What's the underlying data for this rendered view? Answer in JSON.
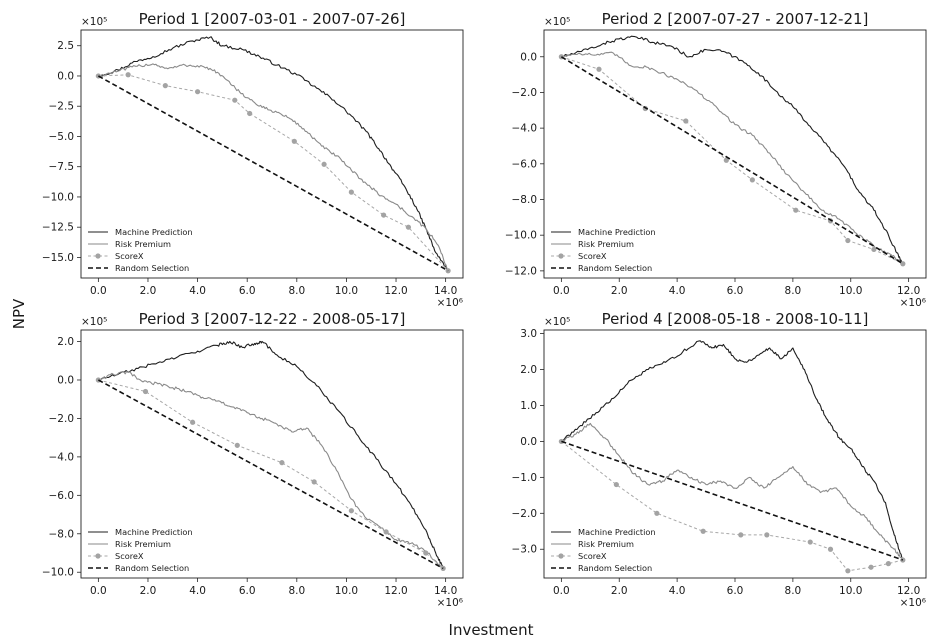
{
  "figure": {
    "ylabel": "NPV",
    "xlabel": "Investment"
  },
  "chart_data": [
    {
      "type": "line",
      "title": "Period 1 [2007-03-01 - 2007-07-26]",
      "x_exponent": "×10⁶",
      "y_exponent": "×10⁵",
      "xlim": [
        -0.7,
        14.7
      ],
      "ylim": [
        -16.7,
        3.8
      ],
      "xticks": [
        0,
        2,
        4,
        6,
        8,
        10,
        12,
        14
      ],
      "xtick_labels": [
        "0.0",
        "2.0",
        "4.0",
        "6.0",
        "8.0",
        "10.0",
        "12.0",
        "14.0"
      ],
      "yticks": [
        2.5,
        0,
        -2.5,
        -5,
        -7.5,
        -10,
        -12.5,
        -15
      ],
      "ytick_labels": [
        "2.5",
        "0.0",
        "−2.5",
        "−5.0",
        "−7.5",
        "−10.0",
        "−12.5",
        "−15.0"
      ],
      "legend": "lower-left",
      "series": [
        {
          "name": "Machine Prediction",
          "style": "solid-dark",
          "x": [
            0,
            0.8,
            1.5,
            2.2,
            3.0,
            3.8,
            4.5,
            5.0,
            5.8,
            6.5,
            7.2,
            8.0,
            8.8,
            9.5,
            10.2,
            10.8,
            11.3,
            11.8,
            12.3,
            12.8,
            13.2,
            13.6,
            14.1
          ],
          "y": [
            0,
            0.5,
            1.2,
            1.6,
            2.3,
            2.9,
            3.2,
            2.5,
            2.2,
            1.6,
            0.9,
            0.1,
            -1.0,
            -2.0,
            -3.3,
            -4.6,
            -6.0,
            -7.5,
            -9.0,
            -10.8,
            -12.6,
            -14.6,
            -16.1
          ]
        },
        {
          "name": "Risk Premium",
          "style": "solid-light",
          "x": [
            0,
            0.8,
            1.5,
            2.2,
            2.8,
            3.5,
            4.2,
            4.8,
            5.4,
            6.0,
            6.6,
            7.2,
            7.8,
            8.4,
            9.0,
            9.6,
            10.2,
            10.8,
            11.4,
            12.0,
            12.6,
            13.2,
            13.7,
            14.1
          ],
          "y": [
            0,
            0.4,
            0.8,
            1.0,
            0.6,
            0.9,
            0.8,
            0.3,
            -0.8,
            -1.8,
            -2.6,
            -3.0,
            -3.6,
            -4.6,
            -5.8,
            -6.6,
            -7.8,
            -8.9,
            -9.9,
            -10.6,
            -11.6,
            -12.6,
            -14.0,
            -16.1
          ]
        },
        {
          "name": "ScoreX",
          "style": "dashed-dots",
          "x": [
            0,
            1.2,
            2.7,
            4.0,
            5.5,
            6.1,
            7.9,
            9.1,
            10.2,
            11.5,
            12.5,
            14.1
          ],
          "y": [
            0,
            0.1,
            -0.8,
            -1.3,
            -2.0,
            -3.1,
            -5.4,
            -7.3,
            -9.6,
            -11.5,
            -12.5,
            -16.1
          ]
        },
        {
          "name": "Random Selection",
          "style": "dashed-black",
          "x": [
            0,
            14.1
          ],
          "y": [
            0,
            -16.1
          ]
        }
      ]
    },
    {
      "type": "line",
      "title": "Period 2 [2007-07-27 - 2007-12-21]",
      "x_exponent": "×10⁶",
      "y_exponent": "×10⁵",
      "xlim": [
        -0.6,
        12.6
      ],
      "ylim": [
        -12.4,
        1.5
      ],
      "xticks": [
        0,
        2,
        4,
        6,
        8,
        10,
        12
      ],
      "xtick_labels": [
        "0.0",
        "2.0",
        "4.0",
        "6.0",
        "8.0",
        "10.0",
        "12.0"
      ],
      "yticks": [
        0,
        -2,
        -4,
        -6,
        -8,
        -10,
        -12
      ],
      "ytick_labels": [
        "0.0",
        "−2.0",
        "−4.0",
        "−6.0",
        "−8.0",
        "−10.0",
        "−12.0"
      ],
      "legend": "lower-left",
      "series": [
        {
          "name": "Machine Prediction",
          "style": "solid-dark",
          "x": [
            0,
            0.7,
            1.4,
            2.0,
            2.6,
            3.2,
            3.8,
            4.4,
            5.0,
            5.6,
            6.2,
            6.8,
            7.4,
            8.0,
            8.6,
            9.2,
            9.8,
            10.3,
            10.8,
            11.2,
            11.6,
            11.8
          ],
          "y": [
            0,
            0.3,
            0.7,
            1.0,
            1.1,
            0.8,
            0.6,
            0.0,
            0.4,
            0.3,
            -0.2,
            -0.9,
            -1.9,
            -2.8,
            -3.9,
            -5.0,
            -6.2,
            -7.6,
            -8.6,
            -9.7,
            -11.0,
            -11.6
          ]
        },
        {
          "name": "Risk Premium",
          "style": "solid-light",
          "x": [
            0,
            0.6,
            1.2,
            1.8,
            2.4,
            3.0,
            3.6,
            4.2,
            4.8,
            5.4,
            6.0,
            6.6,
            7.2,
            7.8,
            8.4,
            9.0,
            9.6,
            10.2,
            10.8,
            11.4,
            11.8
          ],
          "y": [
            0,
            0.2,
            0.1,
            0.2,
            -0.5,
            -0.6,
            -1.0,
            -1.4,
            -2.1,
            -2.9,
            -3.8,
            -4.4,
            -5.4,
            -6.6,
            -7.6,
            -8.6,
            -9.1,
            -9.9,
            -10.6,
            -11.1,
            -11.6
          ]
        },
        {
          "name": "ScoreX",
          "style": "dashed-dots",
          "x": [
            0,
            1.3,
            2.9,
            4.3,
            5.7,
            6.6,
            8.1,
            9.3,
            9.9,
            10.8,
            11.8
          ],
          "y": [
            0,
            -0.7,
            -2.9,
            -3.6,
            -5.8,
            -6.9,
            -8.6,
            -9.2,
            -10.3,
            -10.8,
            -11.6
          ]
        },
        {
          "name": "Random Selection",
          "style": "dashed-black",
          "x": [
            0,
            11.8
          ],
          "y": [
            0,
            -11.6
          ]
        }
      ]
    },
    {
      "type": "line",
      "title": "Period 3 [2007-12-22 - 2008-05-17]",
      "x_exponent": "×10⁶",
      "y_exponent": "×10⁵",
      "xlim": [
        -0.7,
        14.7
      ],
      "ylim": [
        -10.3,
        2.6
      ],
      "xticks": [
        0,
        2,
        4,
        6,
        8,
        10,
        12,
        14
      ],
      "xtick_labels": [
        "0.0",
        "2.0",
        "4.0",
        "6.0",
        "8.0",
        "10.0",
        "12.0",
        "14.0"
      ],
      "yticks": [
        2,
        0,
        -2,
        -4,
        -6,
        -8,
        -10
      ],
      "ytick_labels": [
        "2.0",
        "0.0",
        "−2.0",
        "−4.0",
        "−6.0",
        "−8.0",
        "−10.0"
      ],
      "legend": "lower-left",
      "series": [
        {
          "name": "Machine Prediction",
          "style": "solid-dark",
          "x": [
            0,
            0.8,
            1.6,
            2.4,
            3.2,
            4.0,
            4.8,
            5.3,
            5.8,
            6.3,
            6.6,
            7.2,
            8.0,
            8.8,
            9.6,
            10.4,
            11.2,
            12.0,
            12.6,
            13.2,
            13.6,
            13.9
          ],
          "y": [
            0,
            0.3,
            0.6,
            0.9,
            1.2,
            1.5,
            1.8,
            2.0,
            1.7,
            1.9,
            2.0,
            1.3,
            0.7,
            -0.3,
            -1.5,
            -2.8,
            -4.1,
            -5.4,
            -6.5,
            -7.8,
            -9.0,
            -9.8
          ]
        },
        {
          "name": "Risk Premium",
          "style": "solid-light",
          "x": [
            0,
            0.6,
            1.2,
            1.8,
            2.4,
            3.0,
            3.6,
            4.2,
            4.8,
            5.4,
            6.0,
            6.6,
            7.2,
            7.8,
            8.4,
            9.0,
            9.6,
            10.2,
            10.8,
            11.4,
            12.0,
            12.6,
            13.2,
            13.9
          ],
          "y": [
            0,
            0.3,
            0.4,
            -0.1,
            -0.2,
            -0.4,
            -0.6,
            -0.9,
            -1.1,
            -1.4,
            -1.7,
            -2.0,
            -2.3,
            -2.7,
            -2.5,
            -3.4,
            -4.7,
            -6.2,
            -7.2,
            -7.7,
            -8.3,
            -8.5,
            -8.9,
            -9.8
          ]
        },
        {
          "name": "ScoreX",
          "style": "dashed-dots",
          "x": [
            0,
            1.9,
            3.8,
            5.6,
            7.4,
            8.7,
            10.2,
            11.6,
            13.2,
            13.9
          ],
          "y": [
            0,
            -0.6,
            -2.2,
            -3.4,
            -4.3,
            -5.3,
            -6.8,
            -7.9,
            -9.0,
            -9.8
          ]
        },
        {
          "name": "Random Selection",
          "style": "dashed-black",
          "x": [
            0,
            13.9
          ],
          "y": [
            0,
            -9.8
          ]
        }
      ]
    },
    {
      "type": "line",
      "title": "Period 4 [2008-05-18 - 2008-10-11]",
      "x_exponent": "×10⁶",
      "y_exponent": "×10⁵",
      "xlim": [
        -0.6,
        12.6
      ],
      "ylim": [
        -3.8,
        3.1
      ],
      "xticks": [
        0,
        2,
        4,
        6,
        8,
        10,
        12
      ],
      "xtick_labels": [
        "0.0",
        "2.0",
        "4.0",
        "6.0",
        "8.0",
        "10.0",
        "12.0"
      ],
      "yticks": [
        3,
        2,
        1,
        0,
        -1,
        -2,
        -3
      ],
      "ytick_labels": [
        "3.0",
        "2.0",
        "1.0",
        "0.0",
        "−1.0",
        "−2.0",
        "−3.0"
      ],
      "legend": "lower-left",
      "series": [
        {
          "name": "Machine Prediction",
          "style": "solid-dark",
          "x": [
            0,
            0.6,
            1.2,
            1.8,
            2.4,
            3.0,
            3.6,
            4.2,
            4.8,
            5.2,
            5.6,
            6.0,
            6.4,
            6.8,
            7.2,
            7.6,
            8.0,
            8.4,
            8.8,
            9.2,
            9.6,
            10.0,
            10.4,
            10.8,
            11.2,
            11.5,
            11.8
          ],
          "y": [
            0,
            0.4,
            0.8,
            1.2,
            1.7,
            2.0,
            2.2,
            2.5,
            2.8,
            2.6,
            2.7,
            2.3,
            2.2,
            2.4,
            2.6,
            2.3,
            2.6,
            2.0,
            1.2,
            0.6,
            0.1,
            -0.2,
            -0.7,
            -1.1,
            -1.7,
            -2.6,
            -3.3
          ]
        },
        {
          "name": "Risk Premium",
          "style": "solid-light",
          "x": [
            0,
            0.5,
            1.0,
            1.5,
            2.0,
            2.5,
            3.0,
            3.5,
            4.0,
            4.5,
            5.0,
            5.5,
            6.0,
            6.5,
            7.0,
            7.5,
            8.0,
            8.5,
            9.0,
            9.5,
            10.0,
            10.5,
            11.0,
            11.5,
            11.8
          ],
          "y": [
            0,
            0.2,
            0.5,
            0.1,
            -0.4,
            -0.9,
            -1.2,
            -1.1,
            -0.8,
            -1.0,
            -1.2,
            -1.1,
            -1.3,
            -1.0,
            -1.3,
            -1.0,
            -0.7,
            -1.2,
            -1.4,
            -1.3,
            -1.8,
            -2.1,
            -2.6,
            -3.0,
            -3.3
          ]
        },
        {
          "name": "ScoreX",
          "style": "dashed-dots",
          "x": [
            0,
            1.9,
            3.3,
            4.9,
            6.2,
            7.1,
            8.6,
            9.3,
            9.9,
            10.7,
            11.3,
            11.8
          ],
          "y": [
            0,
            -1.2,
            -2.0,
            -2.5,
            -2.6,
            -2.6,
            -2.8,
            -3.0,
            -3.6,
            -3.5,
            -3.4,
            -3.3
          ]
        },
        {
          "name": "Random Selection",
          "style": "dashed-black",
          "x": [
            0,
            11.8
          ],
          "y": [
            0,
            -3.3
          ]
        }
      ]
    }
  ]
}
